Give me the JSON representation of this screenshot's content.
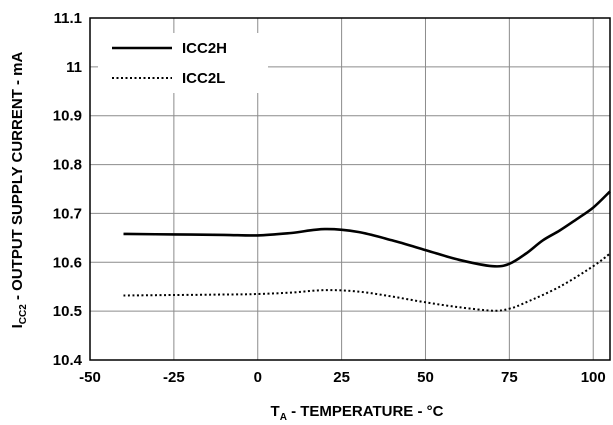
{
  "chart_data": {
    "type": "line",
    "xlabel": {
      "main": "T",
      "sub": "A",
      "rest": " - TEMPERATURE - °C"
    },
    "ylabel": {
      "main": "I",
      "sub": "CC2",
      "rest": " - OUTPUT SUPPLY CURRENT - mA"
    },
    "xlim": [
      -50,
      105
    ],
    "ylim": [
      10.4,
      11.1
    ],
    "xticks": [
      -50,
      -25,
      0,
      25,
      50,
      75,
      100
    ],
    "xtick_labels": [
      "-50",
      "-25",
      "0",
      "25",
      "50",
      "75",
      "100"
    ],
    "yticks": [
      10.4,
      10.5,
      10.6,
      10.7,
      10.8,
      10.9,
      11.0,
      11.1
    ],
    "ytick_labels": [
      "10.4",
      "10.5",
      "10.6",
      "10.7",
      "10.8",
      "10.9",
      "11",
      "11.1"
    ],
    "grid": true,
    "legend_position": "top-left",
    "series": [
      {
        "name": "ICC2H",
        "style": "solid",
        "color": "#000000",
        "x": [
          -40,
          -25,
          -10,
          0,
          10,
          20,
          30,
          40,
          50,
          60,
          70,
          75,
          80,
          85,
          90,
          95,
          100,
          105
        ],
        "y": [
          10.658,
          10.657,
          10.656,
          10.655,
          10.66,
          10.668,
          10.662,
          10.645,
          10.625,
          10.605,
          10.592,
          10.597,
          10.618,
          10.645,
          10.665,
          10.688,
          10.712,
          10.745
        ]
      },
      {
        "name": "ICC2L",
        "style": "dotted",
        "color": "#000000",
        "x": [
          -40,
          -25,
          -10,
          0,
          10,
          20,
          30,
          40,
          50,
          60,
          70,
          75,
          80,
          90,
          100,
          105
        ],
        "y": [
          10.532,
          10.533,
          10.534,
          10.535,
          10.538,
          10.543,
          10.54,
          10.53,
          10.518,
          10.508,
          10.501,
          10.505,
          10.518,
          10.55,
          10.592,
          10.618
        ]
      }
    ]
  }
}
